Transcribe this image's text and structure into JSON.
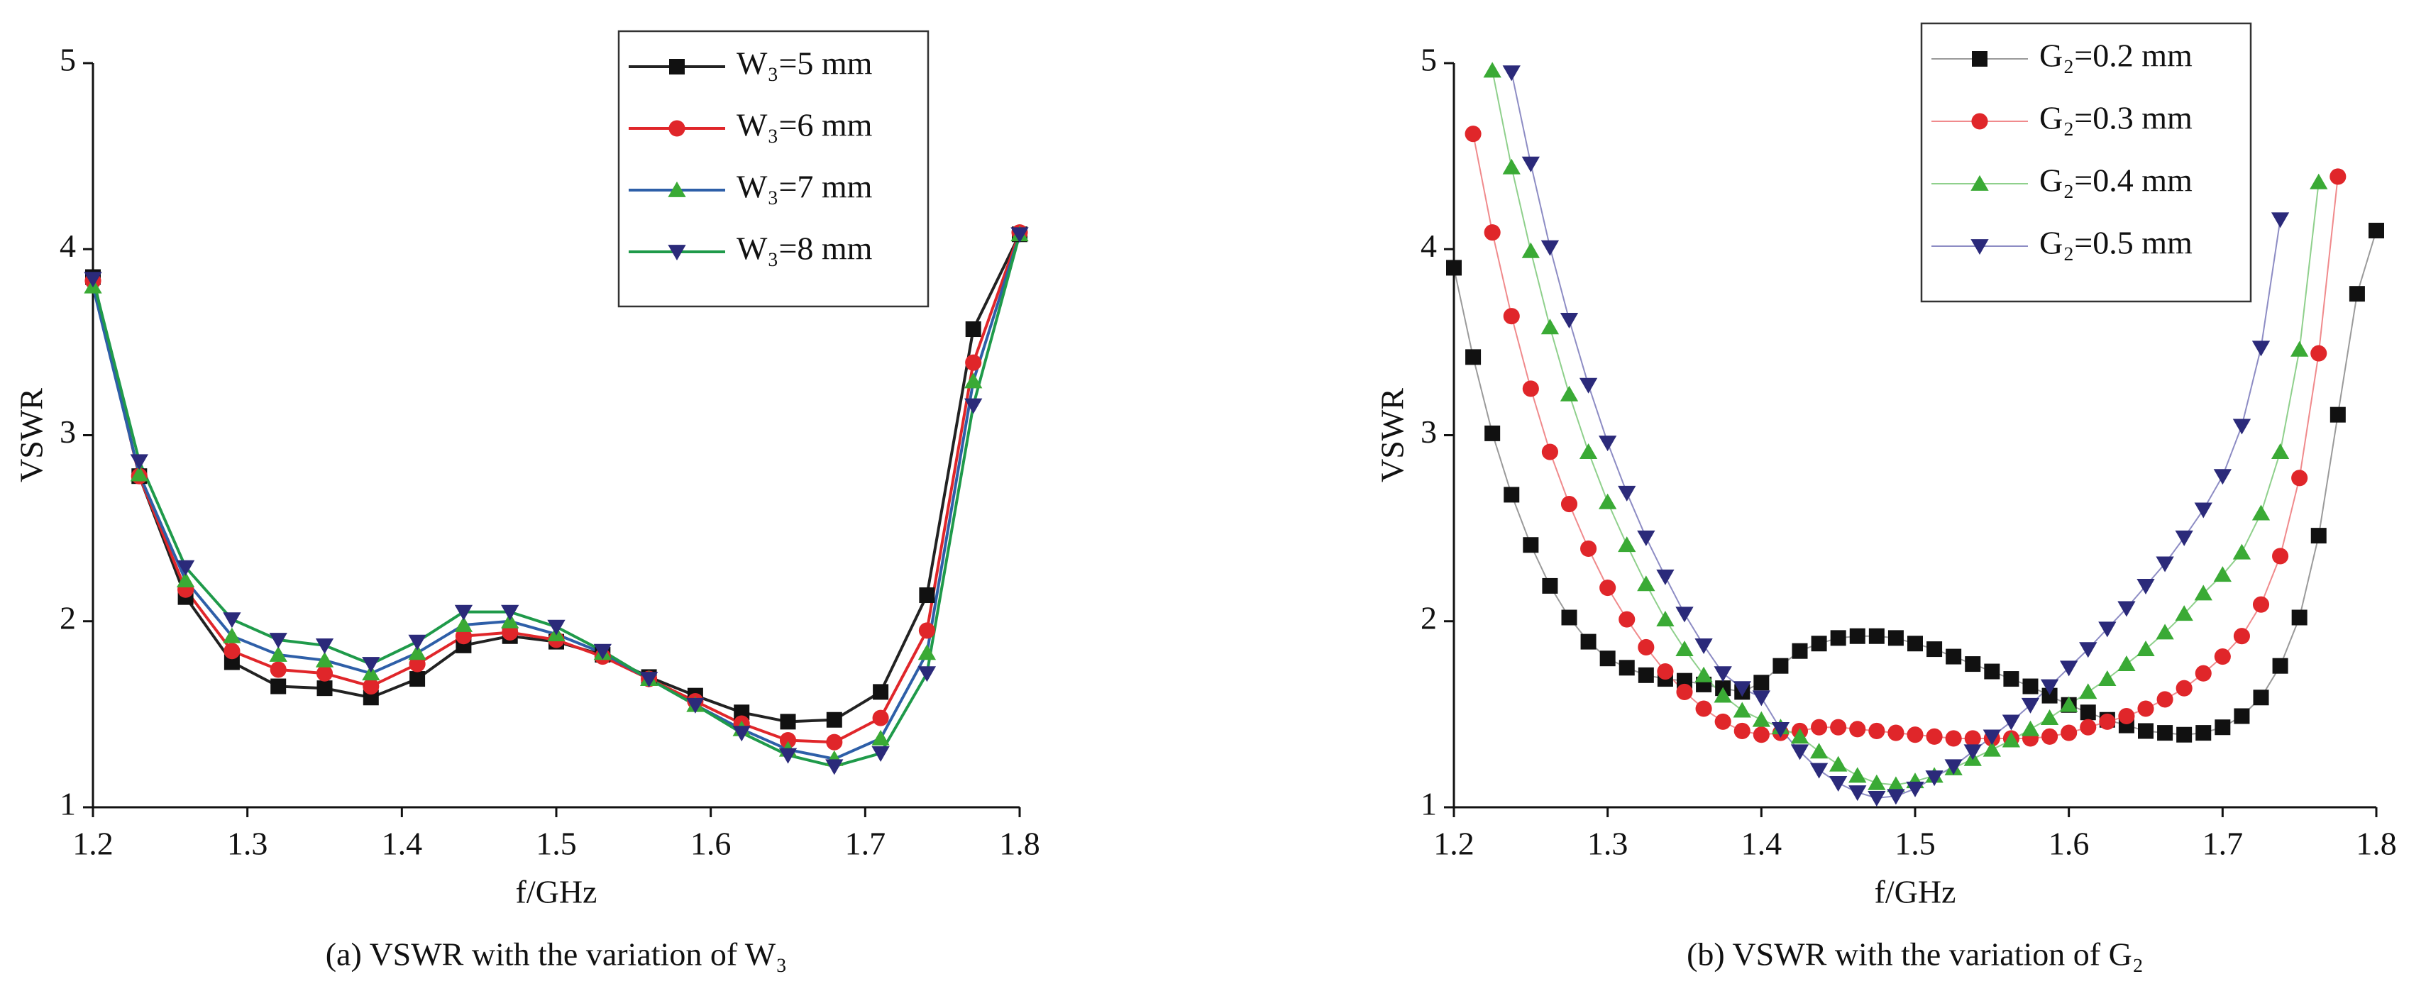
{
  "chart_data": [
    {
      "type": "line",
      "x_label": "f/GHz",
      "y_label": "VSWR",
      "caption": "(a) VSWR with the variation of W₃",
      "xlim": [
        1.2,
        1.8
      ],
      "ylim": [
        1,
        5
      ],
      "xticks": [
        1.2,
        1.3,
        1.4,
        1.5,
        1.6,
        1.7,
        1.8
      ],
      "yticks": [
        1,
        2,
        3,
        4,
        5
      ],
      "legend": "upper right",
      "x": [
        1.2,
        1.23,
        1.26,
        1.29,
        1.32,
        1.35,
        1.38,
        1.41,
        1.44,
        1.47,
        1.5,
        1.53,
        1.56,
        1.59,
        1.62,
        1.65,
        1.68,
        1.71,
        1.74,
        1.77,
        1.8
      ],
      "series": [
        {
          "name": "W₃=5 mm",
          "color": "#222222",
          "marker_color": "#111111",
          "marker": "square",
          "values": [
            3.85,
            2.78,
            2.13,
            1.78,
            1.65,
            1.64,
            1.59,
            1.69,
            1.87,
            1.92,
            1.89,
            1.82,
            1.7,
            1.6,
            1.51,
            1.46,
            1.47,
            1.62,
            2.14,
            3.57,
            4.08
          ]
        },
        {
          "name": "W₃=6 mm",
          "color": "#e0262a",
          "marker_color": "#e0262a",
          "marker": "circle",
          "values": [
            3.83,
            2.78,
            2.17,
            1.84,
            1.74,
            1.72,
            1.65,
            1.77,
            1.92,
            1.94,
            1.9,
            1.81,
            1.69,
            1.57,
            1.45,
            1.36,
            1.35,
            1.48,
            1.95,
            3.39,
            4.09
          ]
        },
        {
          "name": "W₃=7 mm",
          "color": "#2e5fa8",
          "marker_color": "#3aaa35",
          "marker": "triangle-up",
          "values": [
            3.8,
            2.79,
            2.22,
            1.92,
            1.82,
            1.79,
            1.72,
            1.83,
            1.98,
            2.0,
            1.93,
            1.83,
            1.69,
            1.55,
            1.42,
            1.31,
            1.26,
            1.37,
            1.83,
            3.29,
            4.08
          ]
        },
        {
          "name": "W₃=8 mm",
          "color": "#1f9a4a",
          "marker_color": "#2b2a7a",
          "marker": "triangle-down",
          "values": [
            3.84,
            2.86,
            2.29,
            2.01,
            1.9,
            1.87,
            1.77,
            1.89,
            2.05,
            2.05,
            1.97,
            1.84,
            1.69,
            1.55,
            1.4,
            1.28,
            1.22,
            1.29,
            1.72,
            3.16,
            4.08
          ]
        }
      ]
    },
    {
      "type": "line",
      "x_label": "f/GHz",
      "y_label": "VSWR",
      "caption": "(b) VSWR with the variation of G₂",
      "xlim": [
        1.2,
        1.8
      ],
      "ylim": [
        1,
        5
      ],
      "xticks": [
        1.2,
        1.3,
        1.4,
        1.5,
        1.6,
        1.7,
        1.8
      ],
      "yticks": [
        1,
        2,
        3,
        4,
        5
      ],
      "legend": "upper right",
      "x": [
        1.2,
        1.2125,
        1.225,
        1.2375,
        1.25,
        1.2625,
        1.275,
        1.2875,
        1.3,
        1.3125,
        1.325,
        1.3375,
        1.35,
        1.3625,
        1.375,
        1.3875,
        1.4,
        1.4125,
        1.425,
        1.4375,
        1.45,
        1.4625,
        1.475,
        1.4875,
        1.5,
        1.5125,
        1.525,
        1.5375,
        1.55,
        1.5625,
        1.575,
        1.5875,
        1.6,
        1.6125,
        1.625,
        1.6375,
        1.65,
        1.6625,
        1.675,
        1.6875,
        1.7,
        1.7125,
        1.725,
        1.7375,
        1.75,
        1.7625,
        1.775,
        1.7875,
        1.8
      ],
      "series": [
        {
          "name": "G₂=0.2 mm",
          "color": "#9a9a9a",
          "marker_color": "#111111",
          "marker": "square",
          "values": [
            3.9,
            3.42,
            3.01,
            2.68,
            2.41,
            2.19,
            2.02,
            1.89,
            1.8,
            1.75,
            1.71,
            1.69,
            1.68,
            1.66,
            1.64,
            1.62,
            1.67,
            1.76,
            1.84,
            1.88,
            1.91,
            1.92,
            1.92,
            1.91,
            1.88,
            1.85,
            1.81,
            1.77,
            1.73,
            1.69,
            1.65,
            1.6,
            1.55,
            1.51,
            1.47,
            1.44,
            1.41,
            1.4,
            1.39,
            1.4,
            1.43,
            1.49,
            1.59,
            1.76,
            2.02,
            2.46,
            3.11,
            3.76,
            4.1
          ]
        },
        {
          "name": "G₂=0.3 mm",
          "color": "#f08a8c",
          "marker_color": "#e0262a",
          "marker": "circle",
          "values": [
            null,
            4.62,
            4.09,
            3.64,
            3.25,
            2.91,
            2.63,
            2.39,
            2.18,
            2.01,
            1.86,
            1.73,
            1.62,
            1.53,
            1.46,
            1.41,
            1.39,
            1.4,
            1.41,
            1.43,
            1.43,
            1.42,
            1.41,
            1.4,
            1.39,
            1.38,
            1.37,
            1.37,
            1.37,
            1.37,
            1.37,
            1.38,
            1.4,
            1.43,
            1.46,
            1.49,
            1.53,
            1.58,
            1.64,
            1.72,
            1.81,
            1.92,
            2.09,
            2.35,
            2.77,
            3.44,
            4.39,
            null,
            null
          ]
        },
        {
          "name": "G₂=0.4 mm",
          "color": "#8fd08c",
          "marker_color": "#3aaa35",
          "marker": "triangle-up",
          "values": [
            null,
            null,
            4.96,
            4.44,
            3.99,
            3.58,
            3.22,
            2.91,
            2.64,
            2.41,
            2.2,
            2.01,
            1.85,
            1.71,
            1.6,
            1.52,
            1.47,
            1.43,
            1.38,
            1.3,
            1.23,
            1.17,
            1.13,
            1.12,
            1.14,
            1.17,
            1.21,
            1.26,
            1.31,
            1.36,
            1.42,
            1.48,
            1.55,
            1.62,
            1.69,
            1.77,
            1.85,
            1.94,
            2.04,
            2.15,
            2.25,
            2.37,
            2.58,
            2.91,
            3.46,
            4.36,
            null,
            null,
            null
          ]
        },
        {
          "name": "G₂=0.5 mm",
          "color": "#8d8cc4",
          "marker_color": "#2b2a7a",
          "marker": "triangle-down",
          "values": [
            null,
            null,
            null,
            4.95,
            4.46,
            4.01,
            3.62,
            3.27,
            2.96,
            2.69,
            2.45,
            2.24,
            2.04,
            1.87,
            1.72,
            1.64,
            1.59,
            1.42,
            1.3,
            1.2,
            1.13,
            1.08,
            1.05,
            1.06,
            1.1,
            1.16,
            1.22,
            1.3,
            1.38,
            1.46,
            1.55,
            1.65,
            1.75,
            1.85,
            1.96,
            2.07,
            2.19,
            2.31,
            2.45,
            2.6,
            2.78,
            3.05,
            3.47,
            4.16,
            null,
            null,
            null,
            null,
            null
          ]
        }
      ]
    }
  ]
}
